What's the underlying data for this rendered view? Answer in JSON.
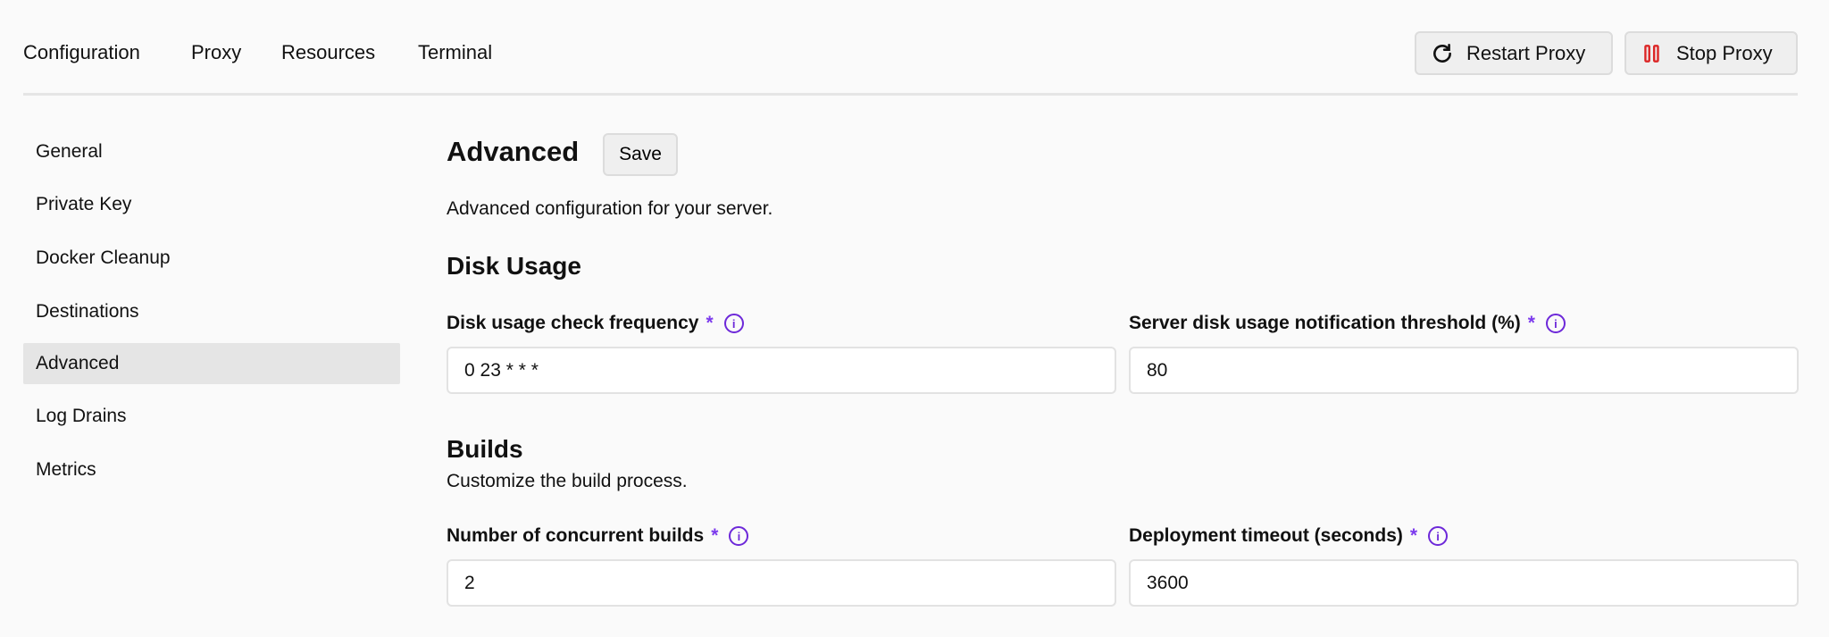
{
  "top_nav": {
    "items": [
      "Configuration",
      "Proxy",
      "Resources",
      "Terminal"
    ]
  },
  "actions": {
    "restart": "Restart Proxy",
    "stop": "Stop Proxy",
    "stop_color": "#dc2626"
  },
  "sidebar": {
    "items": [
      "General",
      "Private Key",
      "Docker Cleanup",
      "Destinations",
      "Advanced",
      "Log Drains",
      "Metrics"
    ],
    "active": "Advanced"
  },
  "main": {
    "title": "Advanced",
    "save": "Save",
    "description": "Advanced configuration for your server.",
    "disk": {
      "heading": "Disk Usage",
      "freq_label": "Disk usage check frequency",
      "freq_value": "0 23 * * *",
      "threshold_label": "Server disk usage notification threshold (%)",
      "threshold_value": "80"
    },
    "builds": {
      "heading": "Builds",
      "description": "Customize the build process.",
      "concurrent_label": "Number of concurrent builds",
      "concurrent_value": "2",
      "timeout_label": "Deployment timeout (seconds)",
      "timeout_value": "3600"
    },
    "required_mark": "*",
    "info_glyph": "i",
    "accent": "#6d28d9"
  }
}
